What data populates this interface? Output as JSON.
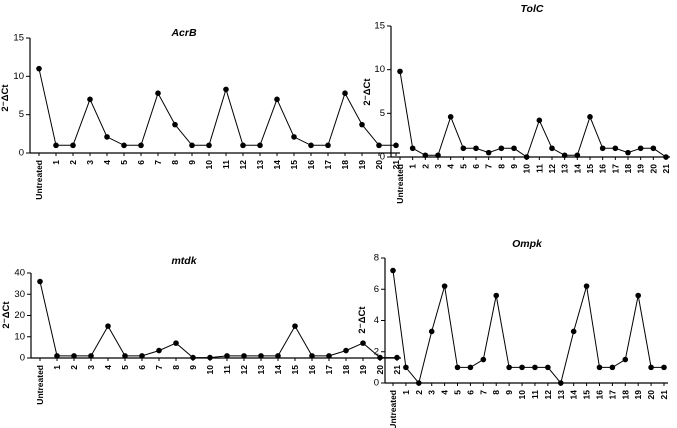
{
  "chart_data": [
    {
      "type": "line",
      "title": "AcrB",
      "ylabel": "2⁻ΔCt",
      "ylim": [
        0,
        15
      ],
      "yticks": [
        "0",
        "5",
        "10",
        "15"
      ],
      "categories": [
        "Untreated",
        "1",
        "2",
        "3",
        "4",
        "5",
        "6",
        "7",
        "8",
        "9",
        "10",
        "11",
        "12",
        "13",
        "14",
        "15",
        "16",
        "17",
        "18",
        "19",
        "20",
        "21"
      ],
      "values": [
        11,
        1,
        1,
        7,
        2.1,
        1,
        1,
        7.8,
        3.7,
        1,
        1,
        8.3,
        1,
        1,
        7,
        2.1,
        1,
        1,
        7.8,
        3.7,
        1,
        1
      ]
    },
    {
      "type": "line",
      "title": "TolC",
      "ylabel": "2⁻ΔCt",
      "ylim": [
        0,
        15
      ],
      "yticks": [
        "0",
        "5",
        "10",
        "15"
      ],
      "categories": [
        "Untreated",
        "1",
        "2",
        "3",
        "4",
        "5",
        "6",
        "7",
        "8",
        "9",
        "10",
        "11",
        "12",
        "13",
        "14",
        "15",
        "16",
        "17",
        "18",
        "19",
        "20",
        "21"
      ],
      "values": [
        9.8,
        1,
        0.2,
        0.2,
        4.6,
        1,
        1,
        0.5,
        1,
        1,
        0,
        4.2,
        1,
        0.2,
        0.2,
        4.6,
        1,
        1,
        0.5,
        1,
        1,
        0
      ]
    },
    {
      "type": "line",
      "title": "mtdk",
      "ylabel": "2⁻ΔCt",
      "ylim": [
        0,
        40
      ],
      "yticks": [
        "0",
        "10",
        "20",
        "30",
        "40"
      ],
      "categories": [
        "Untreated",
        "1",
        "2",
        "3",
        "4",
        "5",
        "6",
        "7",
        "8",
        "9",
        "10",
        "11",
        "12",
        "13",
        "14",
        "15",
        "16",
        "17",
        "18",
        "19",
        "20",
        "21"
      ],
      "values": [
        36,
        1,
        1,
        1,
        15,
        1,
        1,
        3.5,
        7,
        0.2,
        0.2,
        1,
        1,
        1,
        1,
        15,
        1,
        1,
        3.5,
        7,
        0.2,
        0.2
      ]
    },
    {
      "type": "line",
      "title": "Ompk",
      "ylabel": "2⁻ΔCt",
      "ylim": [
        0,
        8
      ],
      "yticks": [
        "0",
        "2",
        "4",
        "6",
        "8"
      ],
      "categories": [
        "Untreated",
        "1",
        "2",
        "3",
        "4",
        "5",
        "6",
        "7",
        "8",
        "9",
        "10",
        "11",
        "12",
        "13",
        "14",
        "15",
        "16",
        "17",
        "18",
        "19",
        "20",
        "21"
      ],
      "values": [
        7.2,
        1,
        0,
        3.3,
        6.2,
        1,
        1,
        1.5,
        5.6,
        1,
        1,
        1,
        1,
        0,
        3.3,
        6.2,
        1,
        1,
        1.5,
        5.6,
        1,
        1
      ]
    }
  ]
}
